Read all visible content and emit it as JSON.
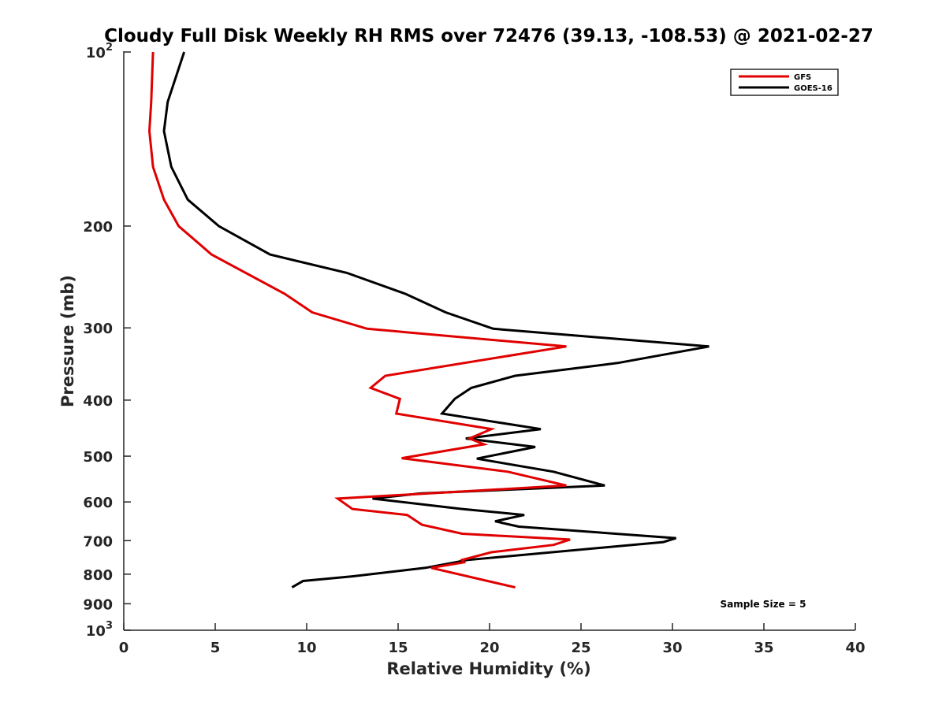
{
  "chart_data": {
    "type": "line",
    "title": "Cloudy Full Disk Weekly RH RMS over 72476 (39.13, -108.53) @ 2021-02-27",
    "xlabel": "Relative Humidity (%)",
    "ylabel": "Pressure (mb)",
    "xlim": [
      0,
      40
    ],
    "ylim": [
      100,
      1000
    ],
    "y_scale": "log",
    "y_reversed": true,
    "grid": false,
    "legend_position": "top-right",
    "x_ticks": [
      "0",
      "5",
      "10",
      "15",
      "20",
      "25",
      "30",
      "35",
      "40"
    ],
    "y_ticks": [
      {
        "value": 100,
        "base": "10",
        "exp": "2"
      },
      {
        "value": 200,
        "label": "200"
      },
      {
        "value": 300,
        "label": "300"
      },
      {
        "value": 400,
        "label": "400"
      },
      {
        "value": 500,
        "label": "500"
      },
      {
        "value": 600,
        "label": "600"
      },
      {
        "value": 700,
        "label": "700"
      },
      {
        "value": 800,
        "label": "800"
      },
      {
        "value": 900,
        "label": "900"
      },
      {
        "value": 1000,
        "base": "10",
        "exp": "3"
      }
    ],
    "annotation": "Sample Size = 5",
    "series": [
      {
        "name": "GFS",
        "color": "#e00000",
        "points": [
          [
            1.6,
            100
          ],
          [
            1.5,
            122
          ],
          [
            1.4,
            137
          ],
          [
            1.6,
            158
          ],
          [
            2.2,
            180
          ],
          [
            3.0,
            200
          ],
          [
            4.8,
            224
          ],
          [
            8.8,
            262
          ],
          [
            10.3,
            282
          ],
          [
            13.3,
            301
          ],
          [
            24.2,
            323
          ],
          [
            14.3,
            363
          ],
          [
            13.5,
            381
          ],
          [
            15.1,
            398
          ],
          [
            14.9,
            422
          ],
          [
            20.1,
            449
          ],
          [
            18.9,
            466
          ],
          [
            19.7,
            477
          ],
          [
            15.2,
            504
          ],
          [
            21.0,
            532
          ],
          [
            24.2,
            562
          ],
          [
            11.7,
            592
          ],
          [
            12.5,
            617
          ],
          [
            15.5,
            632
          ],
          [
            16.3,
            657
          ],
          [
            18.5,
            681
          ],
          [
            24.4,
            697
          ],
          [
            23.5,
            712
          ],
          [
            20.1,
            733
          ],
          [
            18.5,
            756
          ],
          [
            18.6,
            763
          ],
          [
            16.8,
            780
          ],
          [
            21.4,
            843
          ]
        ]
      },
      {
        "name": "GOES-16",
        "color": "#000000",
        "points": [
          [
            3.3,
            100
          ],
          [
            2.4,
            122
          ],
          [
            2.2,
            137
          ],
          [
            2.6,
            158
          ],
          [
            3.5,
            180
          ],
          [
            5.2,
            200
          ],
          [
            8.0,
            224
          ],
          [
            12.2,
            241
          ],
          [
            15.4,
            262
          ],
          [
            17.6,
            282
          ],
          [
            20.2,
            301
          ],
          [
            32.0,
            323
          ],
          [
            27.0,
            345
          ],
          [
            21.4,
            363
          ],
          [
            19.0,
            381
          ],
          [
            18.1,
            398
          ],
          [
            17.4,
            422
          ],
          [
            22.8,
            449
          ],
          [
            18.7,
            466
          ],
          [
            22.5,
            482
          ],
          [
            19.3,
            505
          ],
          [
            23.5,
            532
          ],
          [
            26.3,
            562
          ],
          [
            16.2,
            580
          ],
          [
            13.6,
            592
          ],
          [
            18.5,
            617
          ],
          [
            21.9,
            632
          ],
          [
            20.3,
            648
          ],
          [
            21.6,
            662
          ],
          [
            30.2,
            693
          ],
          [
            29.5,
            704
          ],
          [
            18.8,
            756
          ],
          [
            16.5,
            780
          ],
          [
            12.5,
            807
          ],
          [
            9.8,
            822
          ],
          [
            9.2,
            843
          ]
        ]
      }
    ]
  }
}
